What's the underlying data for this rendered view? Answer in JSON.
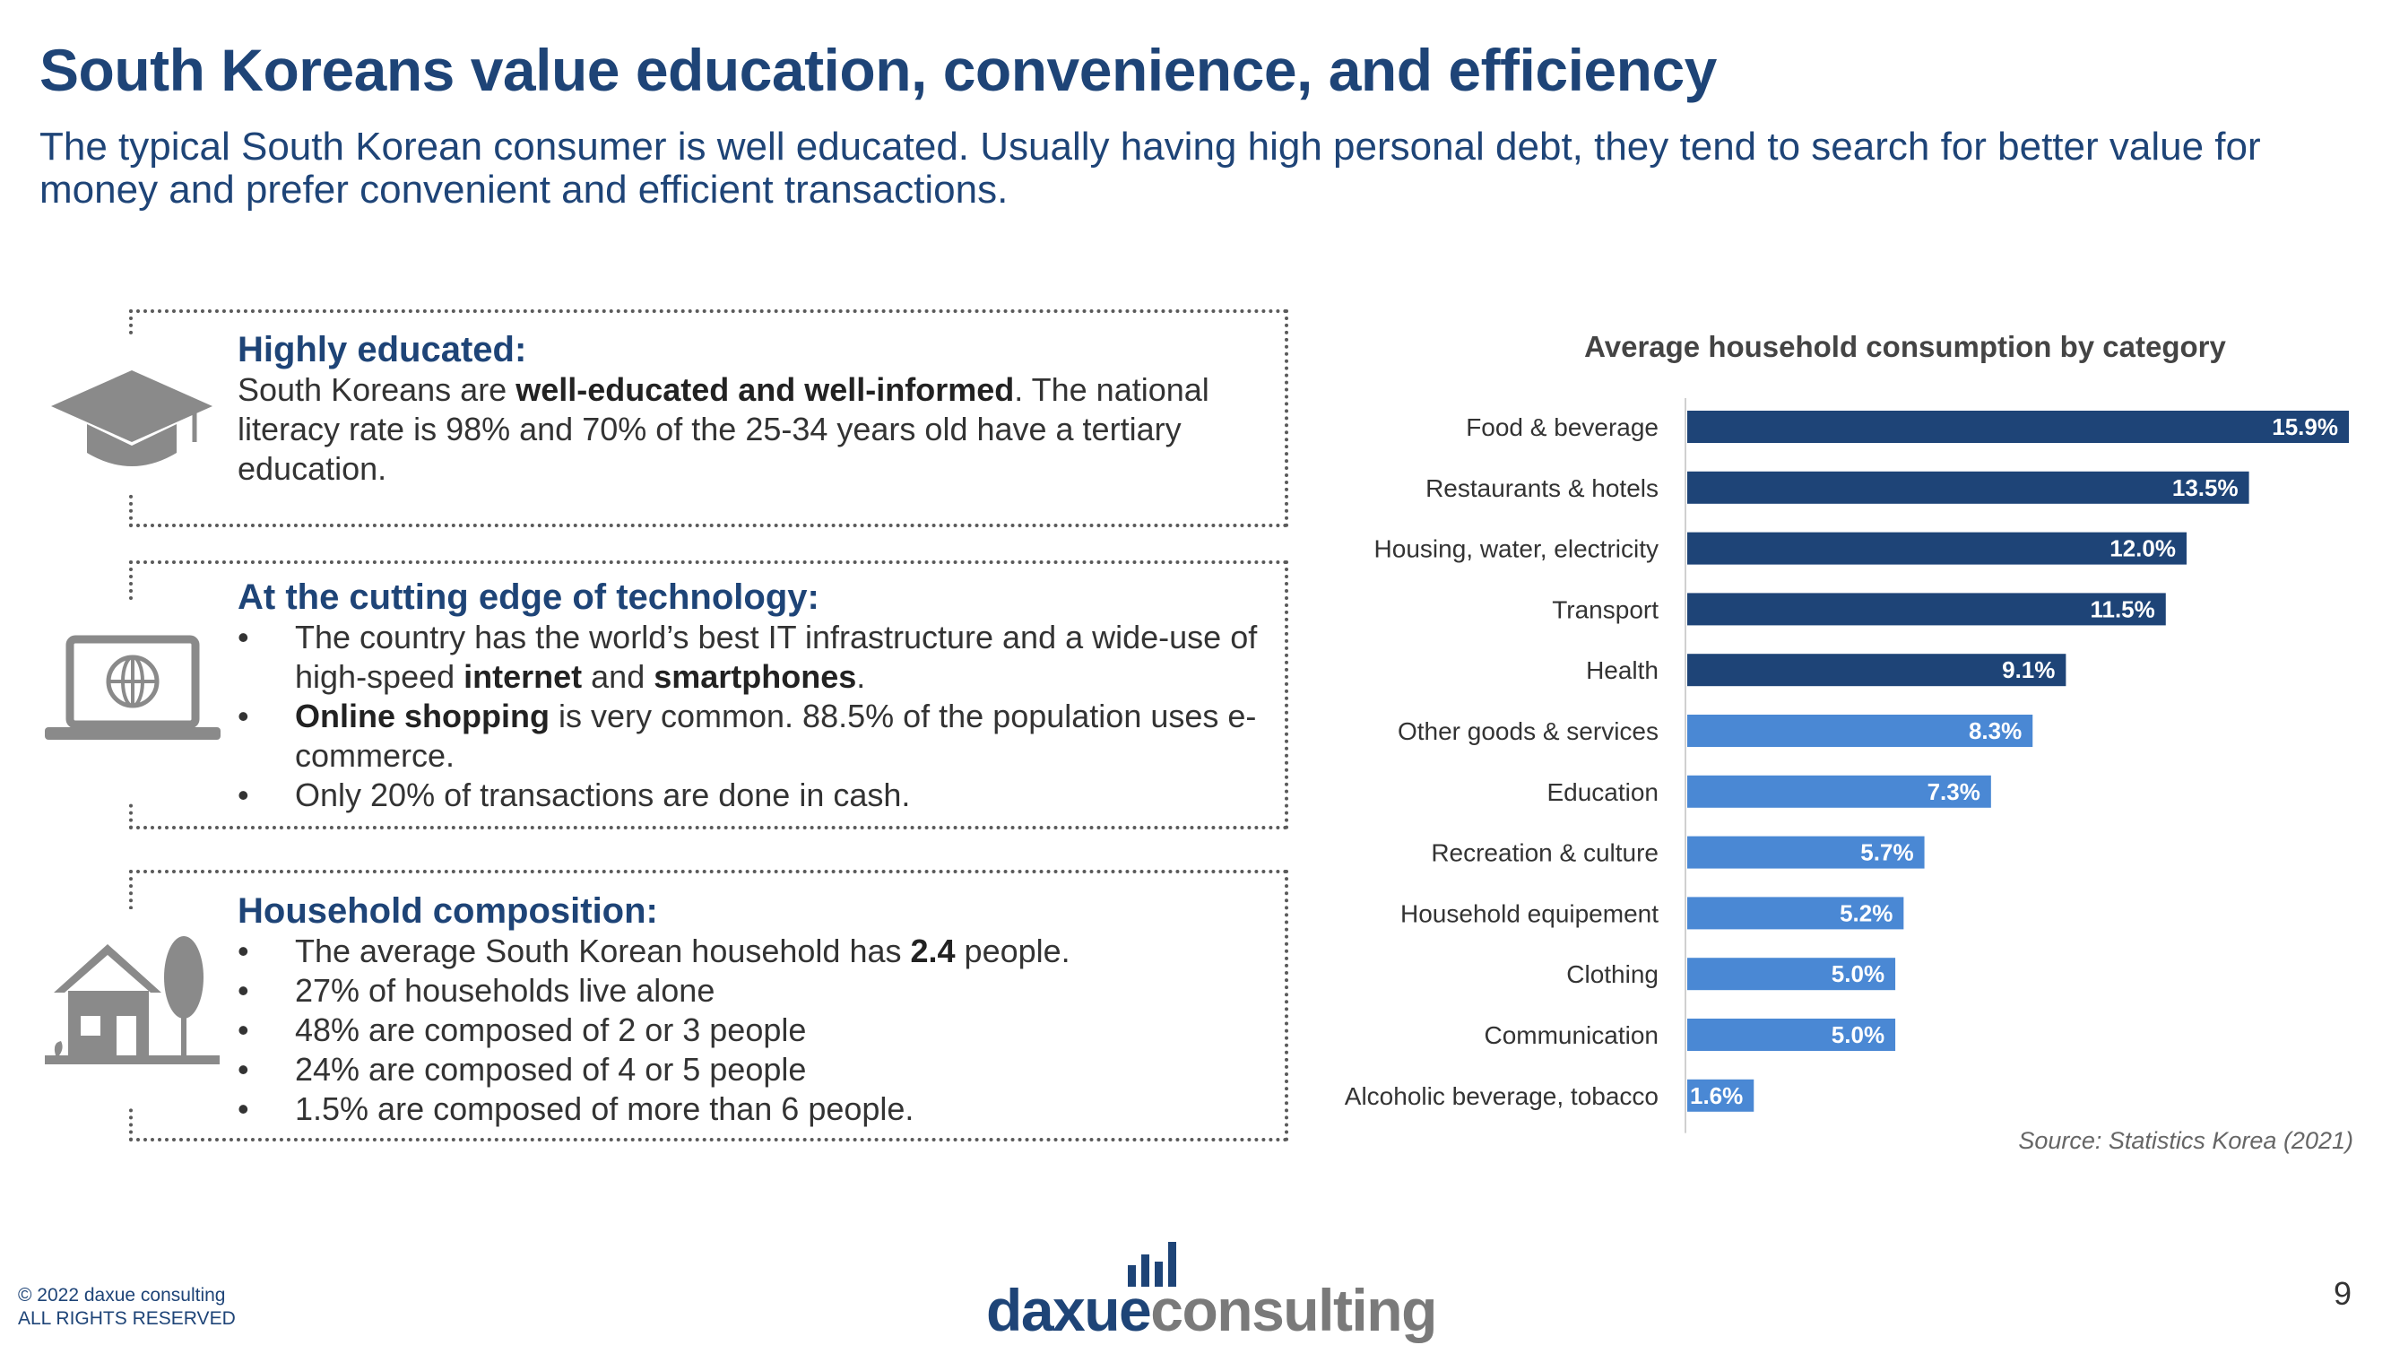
{
  "header": {
    "title": "South Koreans value education, convenience, and efficiency",
    "subtitle": "The typical South Korean consumer is well educated. Usually having high personal debt, they tend to search for better value for money and prefer convenient and efficient transactions."
  },
  "boxes": {
    "education": {
      "icon": "graduation-cap-icon",
      "heading": "Highly educated:",
      "text_intro": "South Koreans are ",
      "text_bold": "well-educated and well-informed",
      "text_rest": ". The national literacy rate is 98% and 70% of the 25-34 years old have a tertiary education."
    },
    "technology": {
      "icon": "laptop-globe-icon",
      "heading": "At the cutting edge of technology:",
      "b1_a": "The country has the world’s best IT infrastructure and a wide-use of high-speed ",
      "b1_b": "internet",
      "b1_c": " and ",
      "b1_d": "smartphones",
      "b1_e": ".",
      "b2_a": "Online shopping",
      "b2_b": " is very common. 88.5% of the population uses e-commerce.",
      "b3": "Only 20% of transactions are done in cash."
    },
    "household": {
      "icon": "house-tree-icon",
      "heading": "Household composition:",
      "b1_a": "The average South Korean household has ",
      "b1_b": "2.4",
      "b1_c": " people.",
      "b2": "27%  of households live alone",
      "b3": "48% are composed of 2 or 3 people",
      "b4": "24% are composed of 4 or 5 people",
      "b5": "1.5% are composed of more than 6 people."
    }
  },
  "chart_data": {
    "type": "bar",
    "orientation": "horizontal",
    "title": "Average household consumption by category",
    "categories": [
      "Food & beverage",
      "Restaurants & hotels",
      "Housing, water, electricity",
      "Transport",
      "Health",
      "Other goods & services",
      "Education",
      "Recreation & culture",
      "Household equipement",
      "Clothing",
      "Communication",
      "Alcoholic beverage, tobacco"
    ],
    "values": [
      15.9,
      13.5,
      12.0,
      11.5,
      9.1,
      8.3,
      7.3,
      5.7,
      5.2,
      5.0,
      5.0,
      1.6
    ],
    "value_labels": [
      "15.9%",
      "13.5%",
      "12.0%",
      "11.5%",
      "9.1%",
      "8.3%",
      "7.3%",
      "5.7%",
      "5.2%",
      "5.0%",
      "5.0%",
      "1.6%"
    ],
    "series_colors": [
      "#1e4477",
      "#1e4477",
      "#1e4477",
      "#1e4477",
      "#1e4477",
      "#4a88d4",
      "#4a88d4",
      "#4a88d4",
      "#4a88d4",
      "#4a88d4",
      "#4a88d4",
      "#4a88d4"
    ],
    "xlim": [
      0,
      15.9
    ],
    "xlabel": "",
    "ylabel": "",
    "grid": false,
    "legend": "none"
  },
  "source": "Source: Statistics Korea  (2021)",
  "footer": {
    "copyright_line1": "© 2022 daxue consulting",
    "copyright_line2": "ALL RIGHTS RESERVED",
    "logo_part1": "daxue",
    "logo_part2": "consulting",
    "page_number": "9"
  },
  "colors": {
    "accent": "#1e4477",
    "bar_dark": "#1e4477",
    "bar_light": "#4a88d4"
  }
}
